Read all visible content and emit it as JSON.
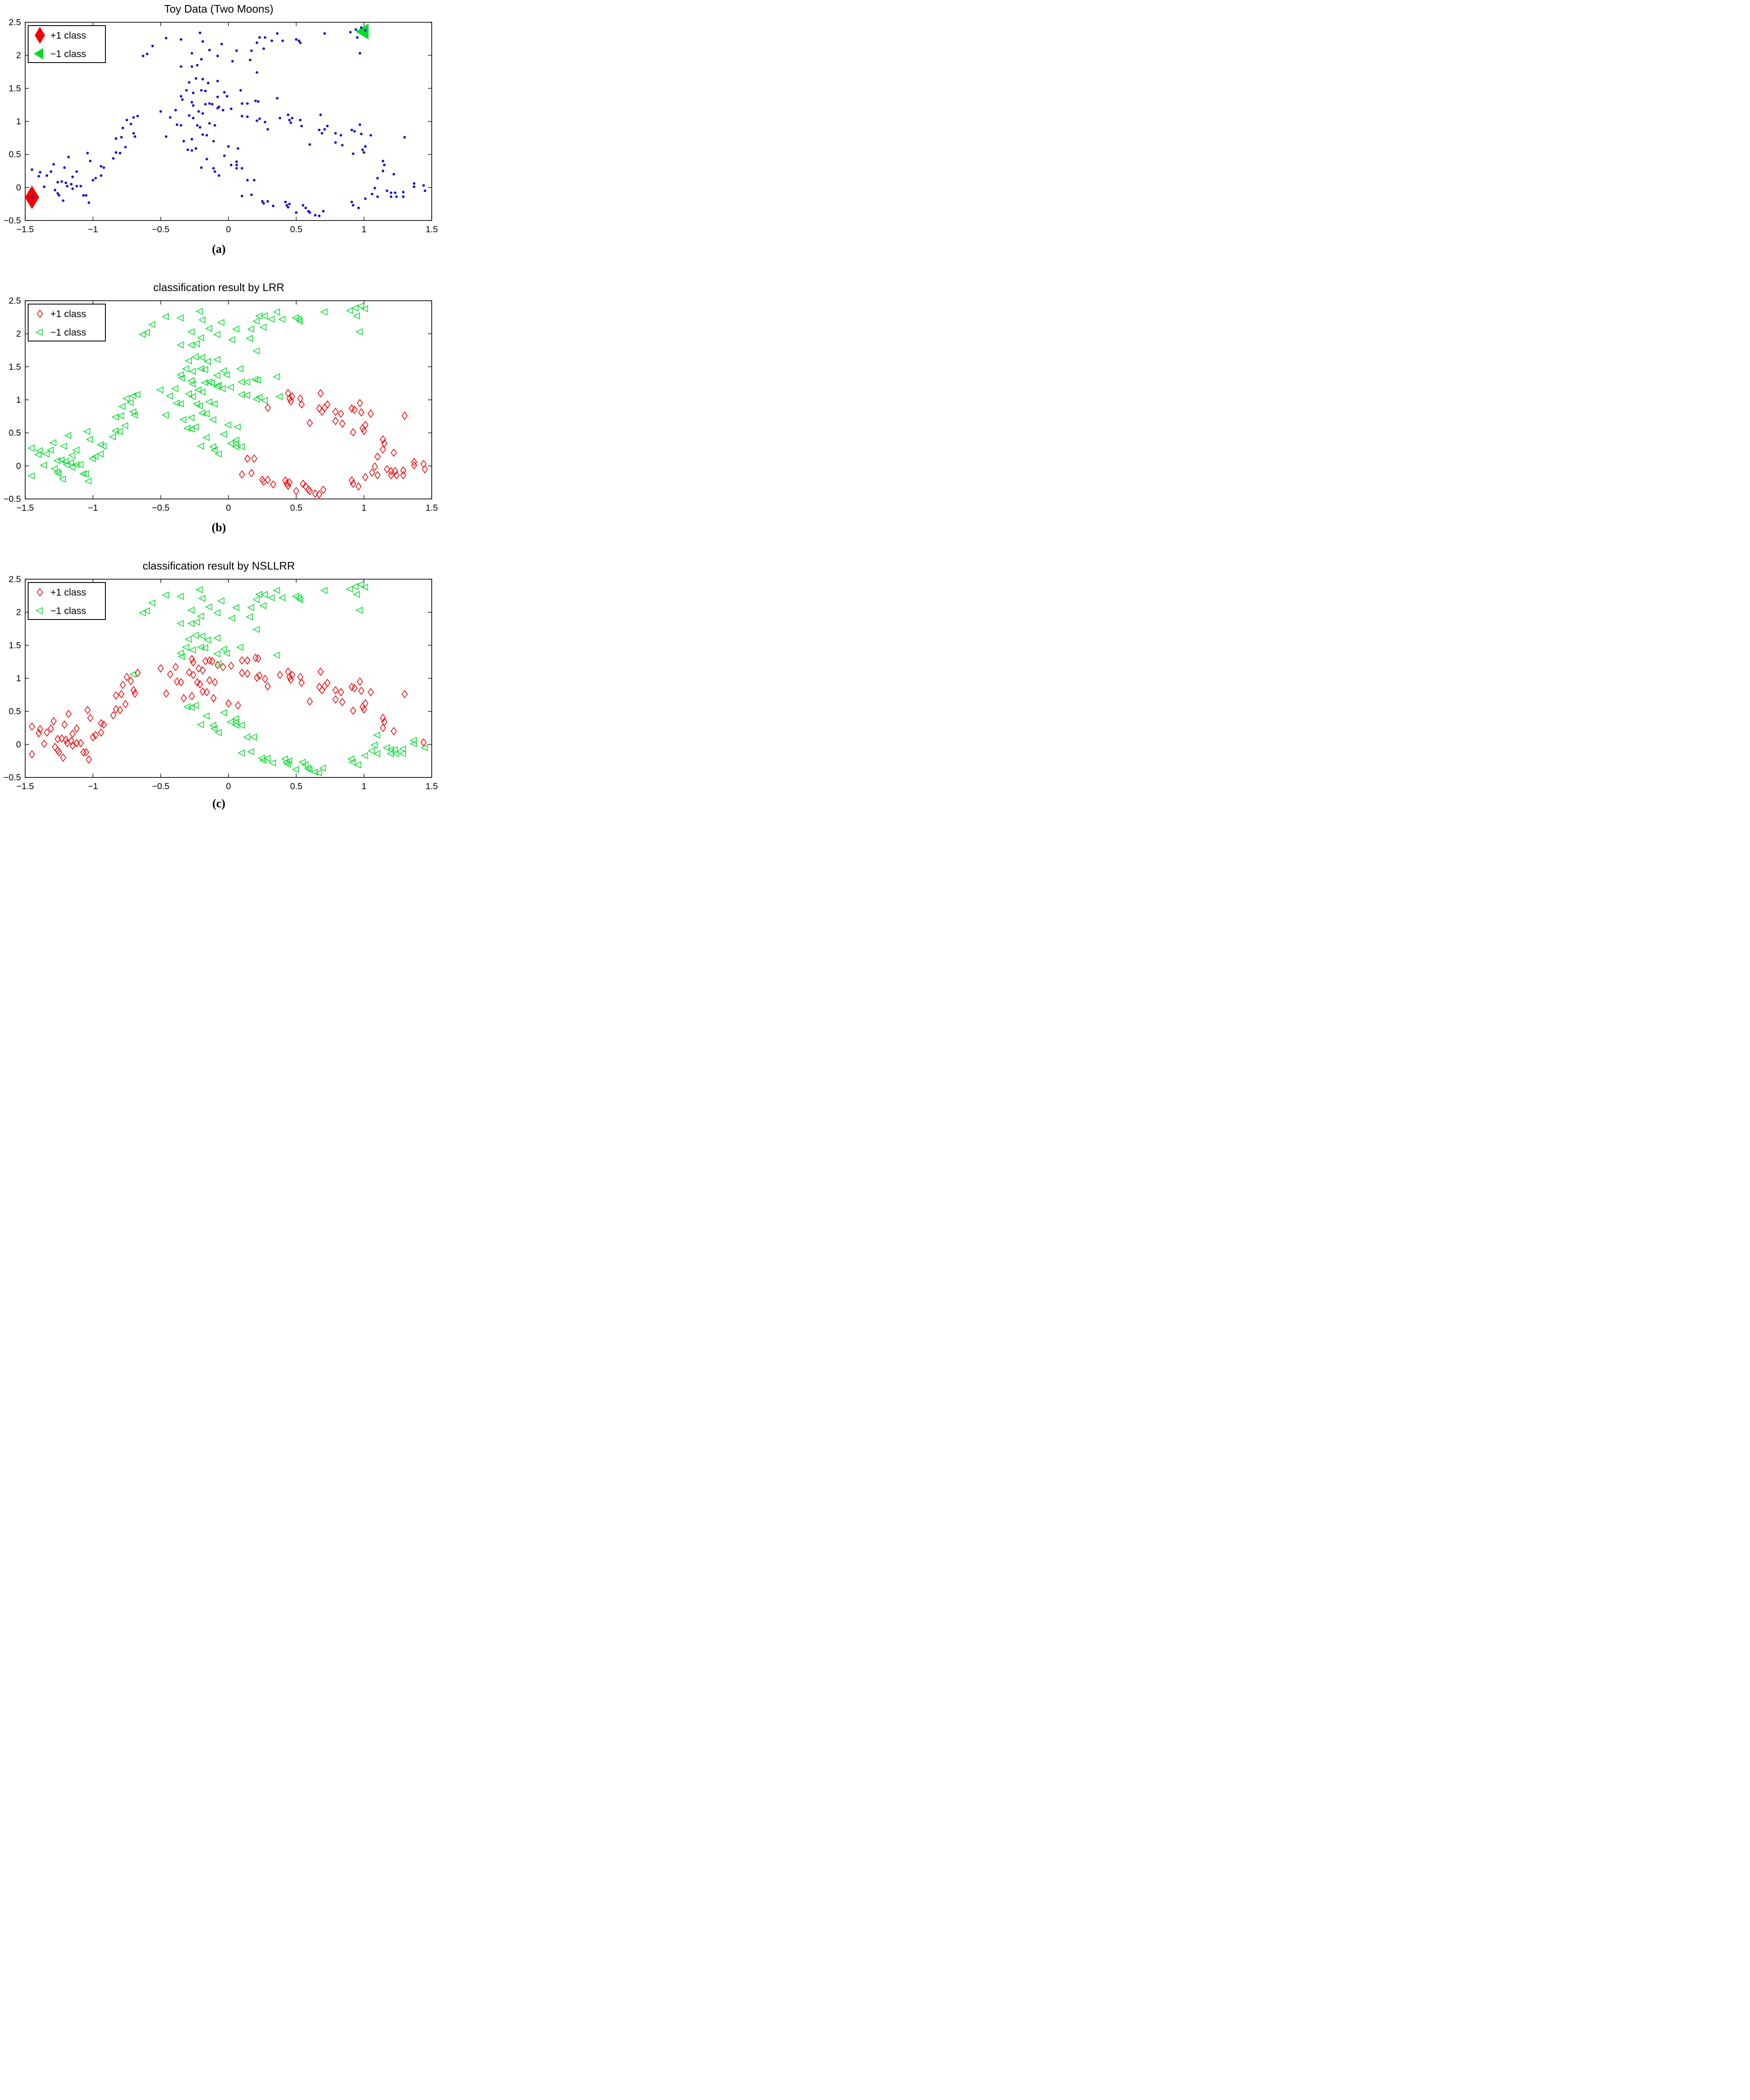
{
  "figure": {
    "background": "#ffffff"
  },
  "colors": {
    "pos_class": "#f40000",
    "neg_class": "#00dc28",
    "unlabeled_dot": "#1212d6",
    "axis": "#000000",
    "legend_border": "#000000"
  },
  "legend": {
    "pos_label": "+1 class",
    "neg_label": "−1 class"
  },
  "axes": {
    "xlim": [
      -1.5,
      1.5
    ],
    "ylim": [
      -0.5,
      2.5
    ],
    "xtick_values": [
      -1.5,
      -1,
      -0.5,
      0,
      0.5,
      1,
      1.5
    ],
    "xtick_labels": [
      "−1.5",
      "−1",
      "−0.5",
      "0",
      "0.5",
      "1",
      "1.5"
    ],
    "ytick_values": [
      2.5,
      2,
      1.5,
      1,
      0.5,
      0,
      -0.5
    ],
    "ytick_labels": [
      "2.5",
      "2",
      "1.5",
      "1",
      "0.5",
      "0",
      "−0.5"
    ],
    "grid": false,
    "box": true
  },
  "panels": [
    {
      "id": "a",
      "title": "Toy Data (Two Moons)",
      "caption": "(a)",
      "mode": "raw",
      "legend_markers": [
        "diamond-filled",
        "triangle-filled"
      ]
    },
    {
      "id": "b",
      "title": "classification result by LRR",
      "caption": "(b)",
      "mode": "classified",
      "class_index": 2,
      "legend_markers": [
        "diamond-open",
        "triangle-open"
      ]
    },
    {
      "id": "c",
      "title": "classification result by NSLLRR",
      "caption": "(c)",
      "mode": "classified",
      "class_index": 3,
      "legend_markers": [
        "diamond-open",
        "triangle-open"
      ]
    }
  ],
  "chart_data": [
    {
      "type": "scatter",
      "title": "Toy Data (Two Moons)",
      "legend": [
        "+1 class",
        "−1 class"
      ],
      "legend_position": "top-left",
      "xlim": [
        -1.5,
        1.5
      ],
      "ylim": [
        -0.5,
        2.5
      ],
      "series_note": "all shared points drawn as blue dots; two labeled samples drawn large",
      "labeled_points": [
        {
          "x": -1.45,
          "y": -0.15,
          "class": "+1",
          "marker": "diamond-filled",
          "color": "#f40000"
        },
        {
          "x": 1.0,
          "y": 2.36,
          "class": "-1",
          "marker": "triangle-filled",
          "color": "#00dc28"
        }
      ]
    },
    {
      "type": "scatter",
      "title": "classification result by LRR",
      "legend": [
        "+1 class",
        "−1 class"
      ],
      "legend_position": "top-left",
      "xlim": [
        -1.5,
        1.5
      ],
      "ylim": [
        -0.5,
        2.5
      ],
      "series_note": "shared points drawn as open red diamonds (+1) / open green triangles (−1) using class column index 2"
    },
    {
      "type": "scatter",
      "title": "classification result by NSLLRR",
      "legend": [
        "+1 class",
        "−1 class"
      ],
      "legend_position": "top-left",
      "xlim": [
        -1.5,
        1.5
      ],
      "ylim": [
        -0.5,
        2.5
      ],
      "series_note": "shared points drawn as open red diamonds (+1) / open green triangles (−1) using class column index 3"
    }
  ],
  "points_format": "[x, y, class_in_LRR_panel, class_in_NSLLRR_panel] where 1 = +1 class (red diamond), -1 = −1 class (green triangle)",
  "points": [
    [
      -1.45,
      -0.15,
      -1,
      1
    ],
    [
      -1.36,
      0.01,
      -1,
      1
    ],
    [
      -1.4,
      0.17,
      -1,
      1
    ],
    [
      -1.39,
      0.23,
      -1,
      1
    ],
    [
      -1.45,
      0.27,
      -1,
      1
    ],
    [
      -1.34,
      0.18,
      -1,
      1
    ],
    [
      -1.31,
      0.24,
      -1,
      1
    ],
    [
      -1.29,
      0.35,
      -1,
      1
    ],
    [
      -1.26,
      0.08,
      -1,
      1
    ],
    [
      -1.23,
      0.09,
      -1,
      1
    ],
    [
      -1.19,
      0.02,
      -1,
      1
    ],
    [
      -1.28,
      -0.04,
      -1,
      1
    ],
    [
      -1.26,
      -0.09,
      -1,
      1
    ],
    [
      -1.25,
      -0.12,
      -1,
      1
    ],
    [
      -1.22,
      -0.2,
      -1,
      1
    ],
    [
      -1.15,
      -0.02,
      -1,
      1
    ],
    [
      -1.16,
      0.05,
      -1,
      1
    ],
    [
      -1.2,
      0.07,
      -1,
      1
    ],
    [
      -1.15,
      0.16,
      -1,
      1
    ],
    [
      -1.18,
      0.46,
      -1,
      1
    ],
    [
      -1.21,
      0.3,
      -1,
      1
    ],
    [
      -1.12,
      0.24,
      -1,
      1
    ],
    [
      -1.12,
      0.02,
      -1,
      1
    ],
    [
      -1.09,
      0.02,
      -1,
      1
    ],
    [
      -1.07,
      -0.12,
      -1,
      1
    ],
    [
      -1.05,
      -0.12,
      -1,
      1
    ],
    [
      -1.03,
      -0.23,
      -1,
      1
    ],
    [
      -1.0,
      0.11,
      -1,
      1
    ],
    [
      -0.98,
      0.14,
      -1,
      1
    ],
    [
      -0.94,
      0.18,
      -1,
      1
    ],
    [
      -1.04,
      0.52,
      -1,
      1
    ],
    [
      -1.02,
      0.4,
      -1,
      1
    ],
    [
      -0.94,
      0.32,
      -1,
      1
    ],
    [
      -0.92,
      0.3,
      -1,
      1
    ],
    [
      -0.85,
      0.44,
      -1,
      1
    ],
    [
      -0.83,
      0.53,
      -1,
      1
    ],
    [
      -0.8,
      0.52,
      -1,
      1
    ],
    [
      -0.76,
      0.61,
      -1,
      1
    ],
    [
      -0.83,
      0.74,
      -1,
      1
    ],
    [
      -0.79,
      0.76,
      -1,
      1
    ],
    [
      -0.7,
      0.82,
      -1,
      1
    ],
    [
      -0.69,
      0.77,
      -1,
      1
    ],
    [
      -0.75,
      1.02,
      -1,
      1
    ],
    [
      -0.72,
      0.96,
      -1,
      1
    ],
    [
      -0.78,
      0.9,
      -1,
      1
    ],
    [
      -0.67,
      1.08,
      -1,
      1
    ],
    [
      -0.7,
      1.06,
      -1,
      -1
    ],
    [
      -0.5,
      1.15,
      -1,
      1
    ],
    [
      -0.43,
      1.06,
      -1,
      1
    ],
    [
      -0.39,
      1.17,
      -1,
      1
    ],
    [
      -0.38,
      0.95,
      -1,
      1
    ],
    [
      -0.35,
      0.94,
      -1,
      1
    ],
    [
      -0.29,
      1.09,
      -1,
      1
    ],
    [
      -0.26,
      1.05,
      -1,
      1
    ],
    [
      -0.23,
      0.94,
      -1,
      1
    ],
    [
      -0.21,
      0.91,
      -1,
      1
    ],
    [
      -0.22,
      1.15,
      -1,
      1
    ],
    [
      -0.19,
      1.12,
      -1,
      1
    ],
    [
      -0.17,
      1.26,
      -1,
      1
    ],
    [
      -0.14,
      1.27,
      -1,
      1
    ],
    [
      -0.12,
      1.26,
      -1,
      1
    ],
    [
      -0.27,
      1.29,
      -1,
      1
    ],
    [
      -0.26,
      1.24,
      -1,
      1
    ],
    [
      -0.14,
      0.97,
      -1,
      1
    ],
    [
      -0.1,
      0.94,
      -1,
      1
    ],
    [
      -0.08,
      1.2,
      -1,
      1
    ],
    [
      -0.04,
      1.17,
      -1,
      1
    ],
    [
      -0.19,
      0.8,
      -1,
      1
    ],
    [
      -0.16,
      0.79,
      -1,
      1
    ],
    [
      -0.11,
      0.7,
      -1,
      1
    ],
    [
      -0.27,
      0.73,
      -1,
      1
    ],
    [
      -0.33,
      0.7,
      -1,
      1
    ],
    [
      -0.46,
      0.77,
      -1,
      1
    ],
    [
      0.0,
      0.62,
      -1,
      1
    ],
    [
      0.07,
      0.59,
      -1,
      1
    ],
    [
      0.02,
      1.19,
      -1,
      1
    ],
    [
      0.1,
      1.27,
      -1,
      1
    ],
    [
      0.14,
      1.27,
      -1,
      1
    ],
    [
      0.1,
      1.08,
      -1,
      1
    ],
    [
      0.14,
      1.07,
      -1,
      1
    ],
    [
      0.21,
      1.01,
      -1,
      1
    ],
    [
      0.23,
      1.04,
      -1,
      1
    ],
    [
      0.27,
      0.99,
      -1,
      1
    ],
    [
      0.2,
      1.31,
      -1,
      1
    ],
    [
      0.22,
      1.3,
      -1,
      1
    ],
    [
      0.38,
      1.05,
      -1,
      1
    ],
    [
      0.29,
      0.88,
      1,
      1
    ],
    [
      0.44,
      1.1,
      1,
      1
    ],
    [
      0.47,
      1.05,
      1,
      1
    ],
    [
      0.45,
      1.02,
      1,
      1
    ],
    [
      0.46,
      0.98,
      1,
      1
    ],
    [
      0.53,
      1.02,
      1,
      1
    ],
    [
      0.54,
      0.93,
      1,
      1
    ],
    [
      0.68,
      1.1,
      1,
      1
    ],
    [
      0.67,
      0.87,
      1,
      1
    ],
    [
      0.69,
      0.82,
      1,
      1
    ],
    [
      0.71,
      0.88,
      1,
      1
    ],
    [
      0.73,
      0.93,
      1,
      1
    ],
    [
      0.79,
      0.82,
      1,
      1
    ],
    [
      0.83,
      0.79,
      1,
      1
    ],
    [
      0.6,
      0.65,
      1,
      1
    ],
    [
      0.79,
      0.68,
      1,
      1
    ],
    [
      0.84,
      0.64,
      1,
      1
    ],
    [
      0.91,
      0.87,
      1,
      1
    ],
    [
      0.93,
      0.85,
      1,
      1
    ],
    [
      0.97,
      0.95,
      1,
      1
    ],
    [
      0.98,
      0.81,
      1,
      1
    ],
    [
      1.01,
      0.62,
      1,
      1
    ],
    [
      0.99,
      0.57,
      1,
      1
    ],
    [
      1.0,
      0.53,
      1,
      1
    ],
    [
      1.05,
      0.79,
      1,
      1
    ],
    [
      1.3,
      0.76,
      1,
      1
    ],
    [
      0.92,
      0.51,
      1,
      1
    ],
    [
      1.14,
      0.4,
      1,
      1
    ],
    [
      1.15,
      0.34,
      1,
      1
    ],
    [
      1.14,
      0.25,
      1,
      1
    ],
    [
      1.22,
      0.2,
      1,
      1
    ],
    [
      1.44,
      0.03,
      1,
      1
    ],
    [
      -0.3,
      0.57,
      -1,
      -1
    ],
    [
      -0.27,
      0.56,
      -1,
      -1
    ],
    [
      -0.24,
      0.59,
      -1,
      -1
    ],
    [
      -0.16,
      0.43,
      -1,
      -1
    ],
    [
      -0.2,
      0.3,
      -1,
      -1
    ],
    [
      -0.11,
      0.29,
      -1,
      -1
    ],
    [
      -0.1,
      0.24,
      -1,
      -1
    ],
    [
      -0.07,
      0.18,
      -1,
      -1
    ],
    [
      -0.03,
      0.48,
      -1,
      -1
    ],
    [
      0.02,
      0.34,
      -1,
      -1
    ],
    [
      0.06,
      0.34,
      -1,
      -1
    ],
    [
      0.06,
      0.39,
      -1,
      -1
    ],
    [
      0.06,
      0.29,
      -1,
      -1
    ],
    [
      0.1,
      0.29,
      -1,
      -1
    ],
    [
      0.14,
      0.11,
      1,
      -1
    ],
    [
      0.19,
      0.11,
      1,
      -1
    ],
    [
      0.1,
      -0.13,
      1,
      -1
    ],
    [
      0.17,
      -0.11,
      1,
      -1
    ],
    [
      0.25,
      -0.21,
      1,
      -1
    ],
    [
      0.26,
      -0.24,
      1,
      -1
    ],
    [
      0.29,
      -0.21,
      1,
      -1
    ],
    [
      0.33,
      -0.28,
      1,
      -1
    ],
    [
      0.42,
      -0.22,
      1,
      -1
    ],
    [
      0.43,
      -0.27,
      1,
      -1
    ],
    [
      0.44,
      -0.3,
      1,
      -1
    ],
    [
      0.45,
      -0.25,
      1,
      -1
    ],
    [
      0.5,
      -0.38,
      1,
      -1
    ],
    [
      0.55,
      -0.27,
      1,
      -1
    ],
    [
      0.57,
      -0.31,
      1,
      -1
    ],
    [
      0.59,
      -0.36,
      1,
      -1
    ],
    [
      0.6,
      -0.38,
      1,
      -1
    ],
    [
      0.64,
      -0.42,
      1,
      -1
    ],
    [
      0.67,
      -0.43,
      1,
      -1
    ],
    [
      0.7,
      -0.36,
      1,
      -1
    ],
    [
      0.91,
      -0.22,
      1,
      -1
    ],
    [
      0.92,
      -0.27,
      1,
      -1
    ],
    [
      0.96,
      -0.31,
      1,
      -1
    ],
    [
      1.01,
      -0.17,
      1,
      -1
    ],
    [
      1.06,
      -0.1,
      1,
      -1
    ],
    [
      1.1,
      -0.14,
      1,
      -1
    ],
    [
      1.2,
      -0.14,
      1,
      -1
    ],
    [
      1.24,
      -0.14,
      1,
      -1
    ],
    [
      1.29,
      -0.14,
      1,
      -1
    ],
    [
      1.17,
      -0.05,
      1,
      -1
    ],
    [
      1.2,
      -0.08,
      1,
      -1
    ],
    [
      1.23,
      -0.08,
      1,
      -1
    ],
    [
      1.29,
      -0.07,
      1,
      -1
    ],
    [
      1.08,
      -0.01,
      1,
      -1
    ],
    [
      1.37,
      0.06,
      1,
      -1
    ],
    [
      1.37,
      0.01,
      1,
      -1
    ],
    [
      1.45,
      -0.05,
      1,
      -1
    ],
    [
      1.1,
      0.14,
      1,
      -1
    ],
    [
      -0.6,
      2.02,
      -1,
      -1
    ],
    [
      -0.63,
      1.99,
      -1,
      -1
    ],
    [
      -0.56,
      2.14,
      -1,
      -1
    ],
    [
      -0.46,
      2.26,
      -1,
      -1
    ],
    [
      -0.35,
      2.24,
      -1,
      -1
    ],
    [
      -0.27,
      2.03,
      -1,
      -1
    ],
    [
      -0.23,
      1.85,
      -1,
      -1
    ],
    [
      -0.27,
      1.83,
      -1,
      -1
    ],
    [
      -0.35,
      1.83,
      -1,
      -1
    ],
    [
      -0.21,
      2.34,
      -1,
      -1
    ],
    [
      -0.19,
      2.21,
      -1,
      -1
    ],
    [
      -0.14,
      2.08,
      -1,
      -1
    ],
    [
      -0.08,
      1.99,
      -1,
      -1
    ],
    [
      -0.2,
      1.94,
      -1,
      -1
    ],
    [
      -0.24,
      1.65,
      -1,
      -1
    ],
    [
      -0.19,
      1.64,
      -1,
      -1
    ],
    [
      -0.29,
      1.59,
      -1,
      -1
    ],
    [
      -0.15,
      1.58,
      -1,
      -1
    ],
    [
      -0.08,
      1.61,
      -1,
      -1
    ],
    [
      -0.2,
      1.47,
      -1,
      -1
    ],
    [
      -0.17,
      1.46,
      -1,
      -1
    ],
    [
      -0.26,
      1.43,
      -1,
      -1
    ],
    [
      -0.31,
      1.47,
      -1,
      -1
    ],
    [
      -0.35,
      1.38,
      -1,
      -1
    ],
    [
      -0.34,
      1.33,
      -1,
      -1
    ],
    [
      -0.08,
      1.37,
      -1,
      -1
    ],
    [
      -0.07,
      1.22,
      -1,
      -1
    ],
    [
      0.06,
      2.07,
      -1,
      -1
    ],
    [
      0.17,
      2.07,
      -1,
      -1
    ],
    [
      0.26,
      2.1,
      -1,
      -1
    ],
    [
      0.16,
      1.93,
      -1,
      -1
    ],
    [
      0.03,
      1.91,
      -1,
      -1
    ],
    [
      0.21,
      1.74,
      -1,
      -1
    ],
    [
      -0.03,
      1.44,
      -1,
      -1
    ],
    [
      -0.01,
      1.38,
      -1,
      -1
    ],
    [
      0.09,
      1.47,
      -1,
      -1
    ],
    [
      0.36,
      1.35,
      -1,
      -1
    ],
    [
      -0.05,
      2.17,
      -1,
      -1
    ],
    [
      0.23,
      2.27,
      -1,
      -1
    ],
    [
      0.27,
      2.27,
      -1,
      -1
    ],
    [
      0.21,
      2.19,
      -1,
      -1
    ],
    [
      0.32,
      2.22,
      -1,
      -1
    ],
    [
      0.4,
      2.22,
      -1,
      -1
    ],
    [
      0.5,
      2.24,
      -1,
      -1
    ],
    [
      0.52,
      2.22,
      -1,
      -1
    ],
    [
      0.53,
      2.19,
      -1,
      -1
    ],
    [
      0.71,
      2.33,
      -1,
      -1
    ],
    [
      0.36,
      2.33,
      -1,
      -1
    ],
    [
      0.9,
      2.35,
      -1,
      -1
    ],
    [
      0.94,
      2.39,
      -1,
      -1
    ],
    [
      0.98,
      2.42,
      -1,
      -1
    ],
    [
      1.01,
      2.38,
      -1,
      -1
    ],
    [
      0.95,
      2.27,
      -1,
      -1
    ],
    [
      0.97,
      2.03,
      -1,
      -1
    ]
  ]
}
